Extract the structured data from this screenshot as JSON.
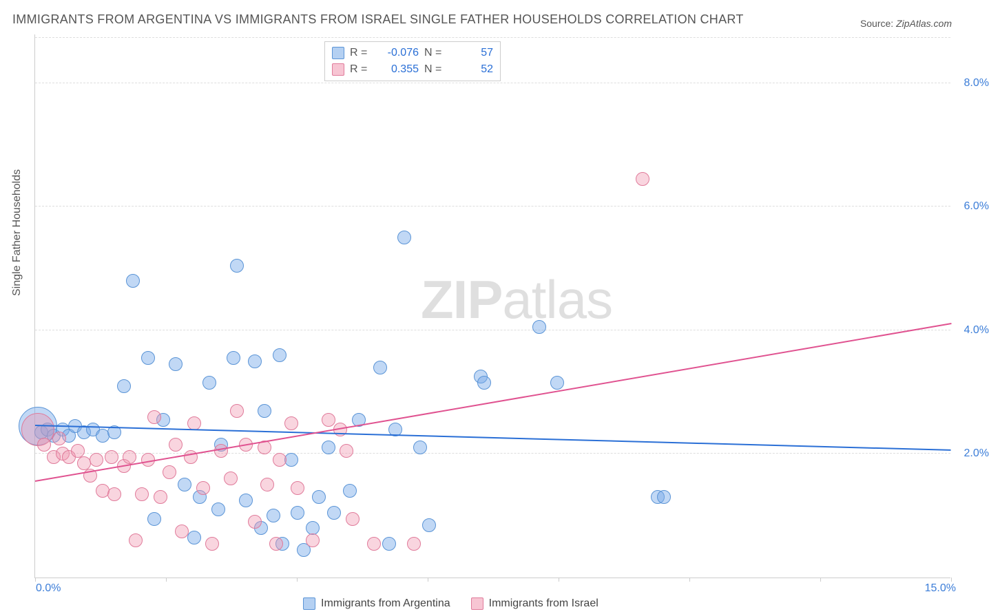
{
  "title": "IMMIGRANTS FROM ARGENTINA VS IMMIGRANTS FROM ISRAEL SINGLE FATHER HOUSEHOLDS CORRELATION CHART",
  "source_label": "Source:",
  "source_value": "ZipAtlas.com",
  "ylabel": "Single Father Households",
  "watermark_a": "ZIP",
  "watermark_b": "atlas",
  "chart": {
    "type": "scatter",
    "xlim": [
      0,
      15
    ],
    "ylim": [
      0,
      8.8
    ],
    "x_ticks": [
      0,
      2.14,
      4.29,
      6.43,
      8.57,
      10.71,
      12.86,
      15
    ],
    "x_tick_labels_shown": {
      "first": "0.0%",
      "last": "15.0%"
    },
    "y_ticks": [
      2.0,
      4.0,
      6.0,
      8.0
    ],
    "y_tick_labels": [
      "2.0%",
      "4.0%",
      "6.0%",
      "8.0%"
    ],
    "grid_color": "#dddddd",
    "background_color": "#ffffff",
    "axis_color": "#cccccc",
    "series": [
      {
        "name": "Immigrants from Argentina",
        "color_key": "blue",
        "fill": "rgba(118,169,232,0.45)",
        "stroke": "#5a94d6",
        "R": "-0.076",
        "N": "57",
        "trend": {
          "x1": 0,
          "y1": 2.45,
          "x2": 15,
          "y2": 2.05,
          "color": "#2a6fd6"
        },
        "marker_radius": 9,
        "points": [
          [
            0.05,
            2.45,
            28
          ],
          [
            0.1,
            2.35,
            10
          ],
          [
            0.2,
            2.4,
            10
          ],
          [
            0.3,
            2.3,
            10
          ],
          [
            0.45,
            2.4,
            10
          ],
          [
            0.55,
            2.3,
            10
          ],
          [
            0.65,
            2.45,
            10
          ],
          [
            0.8,
            2.35,
            10
          ],
          [
            0.95,
            2.4,
            10
          ],
          [
            1.1,
            2.3,
            10
          ],
          [
            1.3,
            2.35,
            10
          ],
          [
            1.45,
            3.1,
            10
          ],
          [
            1.6,
            4.8,
            10
          ],
          [
            1.85,
            3.55,
            10
          ],
          [
            1.95,
            0.95,
            10
          ],
          [
            2.1,
            2.55,
            10
          ],
          [
            2.3,
            3.45,
            10
          ],
          [
            2.45,
            1.5,
            10
          ],
          [
            2.6,
            0.65,
            10
          ],
          [
            2.7,
            1.3,
            10
          ],
          [
            2.85,
            3.15,
            10
          ],
          [
            3.0,
            1.1,
            10
          ],
          [
            3.05,
            2.15,
            10
          ],
          [
            3.25,
            3.55,
            10
          ],
          [
            3.3,
            5.05,
            10
          ],
          [
            3.45,
            1.25,
            10
          ],
          [
            3.6,
            3.5,
            10
          ],
          [
            3.7,
            0.8,
            10
          ],
          [
            3.75,
            2.7,
            10
          ],
          [
            3.9,
            1.0,
            10
          ],
          [
            4.0,
            3.6,
            10
          ],
          [
            4.05,
            0.55,
            10
          ],
          [
            4.2,
            1.9,
            10
          ],
          [
            4.3,
            1.05,
            10
          ],
          [
            4.4,
            0.45,
            10
          ],
          [
            4.55,
            0.8,
            10
          ],
          [
            4.65,
            1.3,
            10
          ],
          [
            4.8,
            2.1,
            10
          ],
          [
            4.9,
            1.05,
            10
          ],
          [
            5.15,
            1.4,
            10
          ],
          [
            5.3,
            2.55,
            10
          ],
          [
            5.65,
            3.4,
            10
          ],
          [
            5.8,
            0.55,
            10
          ],
          [
            5.9,
            2.4,
            10
          ],
          [
            6.05,
            5.5,
            10
          ],
          [
            6.3,
            2.1,
            10
          ],
          [
            6.45,
            0.85,
            10
          ],
          [
            7.3,
            3.25,
            10
          ],
          [
            7.35,
            3.15,
            10
          ],
          [
            8.25,
            4.05,
            10
          ],
          [
            8.55,
            3.15,
            10
          ],
          [
            10.2,
            1.3,
            10
          ],
          [
            10.3,
            1.3,
            10
          ]
        ]
      },
      {
        "name": "Immigrants from Israel",
        "color_key": "pink",
        "fill": "rgba(240,150,175,0.40)",
        "stroke": "#e07a9a",
        "R": "0.355",
        "N": "52",
        "trend": {
          "x1": 0,
          "y1": 1.55,
          "x2": 15,
          "y2": 4.1,
          "color": "#e05290"
        },
        "marker_radius": 9,
        "points": [
          [
            0.05,
            2.4,
            24
          ],
          [
            0.15,
            2.15,
            10
          ],
          [
            0.3,
            1.95,
            10
          ],
          [
            0.4,
            2.25,
            10
          ],
          [
            0.45,
            2.0,
            10
          ],
          [
            0.55,
            1.95,
            10
          ],
          [
            0.7,
            2.05,
            10
          ],
          [
            0.8,
            1.85,
            10
          ],
          [
            0.9,
            1.65,
            10
          ],
          [
            1.0,
            1.9,
            10
          ],
          [
            1.1,
            1.4,
            10
          ],
          [
            1.25,
            1.95,
            10
          ],
          [
            1.3,
            1.35,
            10
          ],
          [
            1.45,
            1.8,
            10
          ],
          [
            1.55,
            1.95,
            10
          ],
          [
            1.65,
            0.6,
            10
          ],
          [
            1.75,
            1.35,
            10
          ],
          [
            1.85,
            1.9,
            10
          ],
          [
            1.95,
            2.6,
            10
          ],
          [
            2.05,
            1.3,
            10
          ],
          [
            2.2,
            1.7,
            10
          ],
          [
            2.3,
            2.15,
            10
          ],
          [
            2.4,
            0.75,
            10
          ],
          [
            2.55,
            1.95,
            10
          ],
          [
            2.6,
            2.5,
            10
          ],
          [
            2.75,
            1.45,
            10
          ],
          [
            2.9,
            0.55,
            10
          ],
          [
            3.05,
            2.05,
            10
          ],
          [
            3.2,
            1.6,
            10
          ],
          [
            3.3,
            2.7,
            10
          ],
          [
            3.45,
            2.15,
            10
          ],
          [
            3.6,
            0.9,
            10
          ],
          [
            3.75,
            2.1,
            10
          ],
          [
            3.8,
            1.5,
            10
          ],
          [
            3.95,
            0.55,
            10
          ],
          [
            4.0,
            1.9,
            10
          ],
          [
            4.2,
            2.5,
            10
          ],
          [
            4.3,
            1.45,
            10
          ],
          [
            4.55,
            0.6,
            10
          ],
          [
            4.8,
            2.55,
            10
          ],
          [
            5.0,
            2.4,
            10
          ],
          [
            5.1,
            2.05,
            10
          ],
          [
            5.2,
            0.95,
            10
          ],
          [
            5.55,
            0.55,
            10
          ],
          [
            6.2,
            0.55,
            10
          ],
          [
            9.95,
            6.45,
            10
          ]
        ]
      }
    ]
  },
  "stat_legend": {
    "R_label": "R =",
    "N_label": "N ="
  },
  "bottom_legend": {
    "items": [
      "Immigrants from Argentina",
      "Immigrants from Israel"
    ]
  }
}
